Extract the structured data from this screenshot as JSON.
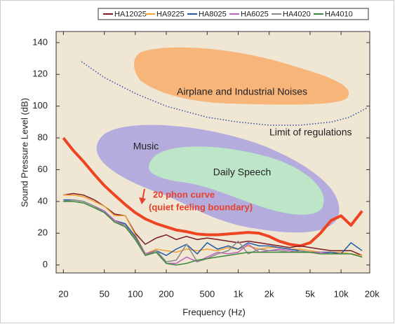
{
  "chart_data": {
    "type": "line",
    "x_label": "Frequency (Hz)",
    "y_label": "Sound Pressure Level (dB)",
    "log_x": true,
    "xlim": [
      17,
      19000
    ],
    "ylim": [
      -5,
      147
    ],
    "xticks": [
      20,
      50,
      100,
      200,
      500,
      {
        "value": 1000,
        "label": "1k"
      },
      {
        "value": 2000,
        "label": "2k"
      },
      {
        "value": 5000,
        "label": "5k"
      },
      {
        "value": 10000,
        "label": "10k"
      },
      {
        "value": 20000,
        "label": "20k"
      }
    ],
    "yticks": [
      0,
      20,
      40,
      60,
      80,
      100,
      120,
      140
    ],
    "x": [
      20,
      25,
      31.5,
      40,
      50,
      63,
      80,
      100,
      125,
      160,
      200,
      250,
      315,
      400,
      500,
      630,
      800,
      1000,
      1250,
      1600,
      2000,
      2500,
      3150,
      4000,
      5000,
      6300,
      8000,
      10000,
      12500,
      16000
    ],
    "series": [
      {
        "name": "HA12025",
        "color": "#7a1a22",
        "values": [
          44,
          45,
          44,
          41,
          37,
          32,
          31,
          20,
          13,
          17,
          19,
          16,
          18,
          16,
          17,
          16,
          15,
          14,
          15,
          14,
          13,
          12,
          11,
          12,
          11,
          10,
          9,
          9,
          9,
          6
        ]
      },
      {
        "name": "HA9225",
        "color": "#f5a031",
        "values": [
          44,
          44,
          43,
          40,
          37,
          31,
          31,
          19,
          7,
          10,
          9,
          8,
          10,
          9,
          10,
          9,
          11,
          10,
          12,
          10,
          11,
          11,
          10,
          10,
          9,
          8,
          8,
          8,
          7,
          6
        ]
      },
      {
        "name": "HA8025",
        "color": "#1f5ba8",
        "values": [
          41,
          41,
          40,
          37,
          34,
          28,
          26,
          18,
          7,
          9,
          6,
          10,
          13,
          7,
          14,
          10,
          12,
          10,
          14,
          12,
          12,
          11,
          10,
          9,
          8,
          8,
          8,
          7,
          14,
          9
        ]
      },
      {
        "name": "HA6025",
        "color": "#c060c0",
        "values": [
          40,
          41,
          40,
          37,
          34,
          28,
          25,
          17,
          7,
          9,
          1,
          1,
          5,
          2,
          5,
          8,
          7,
          8,
          13,
          8,
          9,
          10,
          9,
          8,
          8,
          8,
          7,
          7,
          7,
          5
        ]
      },
      {
        "name": "HA4020",
        "color": "#8a8a8a",
        "values": [
          40,
          41,
          40,
          37,
          33,
          27,
          25,
          17,
          6,
          9,
          2,
          3,
          13,
          2,
          4,
          7,
          9,
          15,
          7,
          10,
          9,
          9,
          8,
          9,
          8,
          7,
          7,
          7,
          7,
          5
        ]
      },
      {
        "name": "HA4010",
        "color": "#3a8a3a",
        "values": [
          40,
          40,
          39,
          36,
          33,
          27,
          24,
          16,
          6,
          8,
          1,
          0,
          1,
          3,
          4,
          5,
          6,
          7,
          8,
          8,
          8,
          8,
          8,
          8,
          8,
          7,
          7,
          7,
          7,
          5
        ]
      }
    ],
    "phon_curve": {
      "label": [
        "20 phon curve",
        "(quiet feeling boundary)"
      ],
      "color": "#ee4422",
      "x": [
        20,
        25,
        31.5,
        40,
        50,
        63,
        80,
        100,
        125,
        160,
        200,
        250,
        315,
        400,
        500,
        630,
        800,
        1000,
        1250,
        1600,
        2000,
        2500,
        3150,
        4000,
        5000,
        6300,
        8000,
        10000,
        12500,
        16000
      ],
      "values": [
        80,
        72,
        65,
        57,
        50,
        44,
        38,
        33,
        29,
        26,
        24,
        22,
        21,
        19.5,
        19,
        19,
        19.5,
        20,
        20.5,
        20,
        18,
        15,
        13,
        12,
        14,
        20,
        28,
        31,
        25,
        34
      ]
    },
    "limit": {
      "label": "Limit of regulations",
      "color": "#3050a0",
      "x": [
        30,
        50,
        100,
        200,
        500,
        1000,
        2000,
        4000,
        8000,
        12000,
        18000
      ],
      "values": [
        128,
        118,
        108,
        100,
        93,
        90,
        88,
        88,
        90,
        93,
        99
      ]
    },
    "regions": [
      "Airplane and Industrial Noises",
      "Music",
      "Daily Speech"
    ]
  }
}
